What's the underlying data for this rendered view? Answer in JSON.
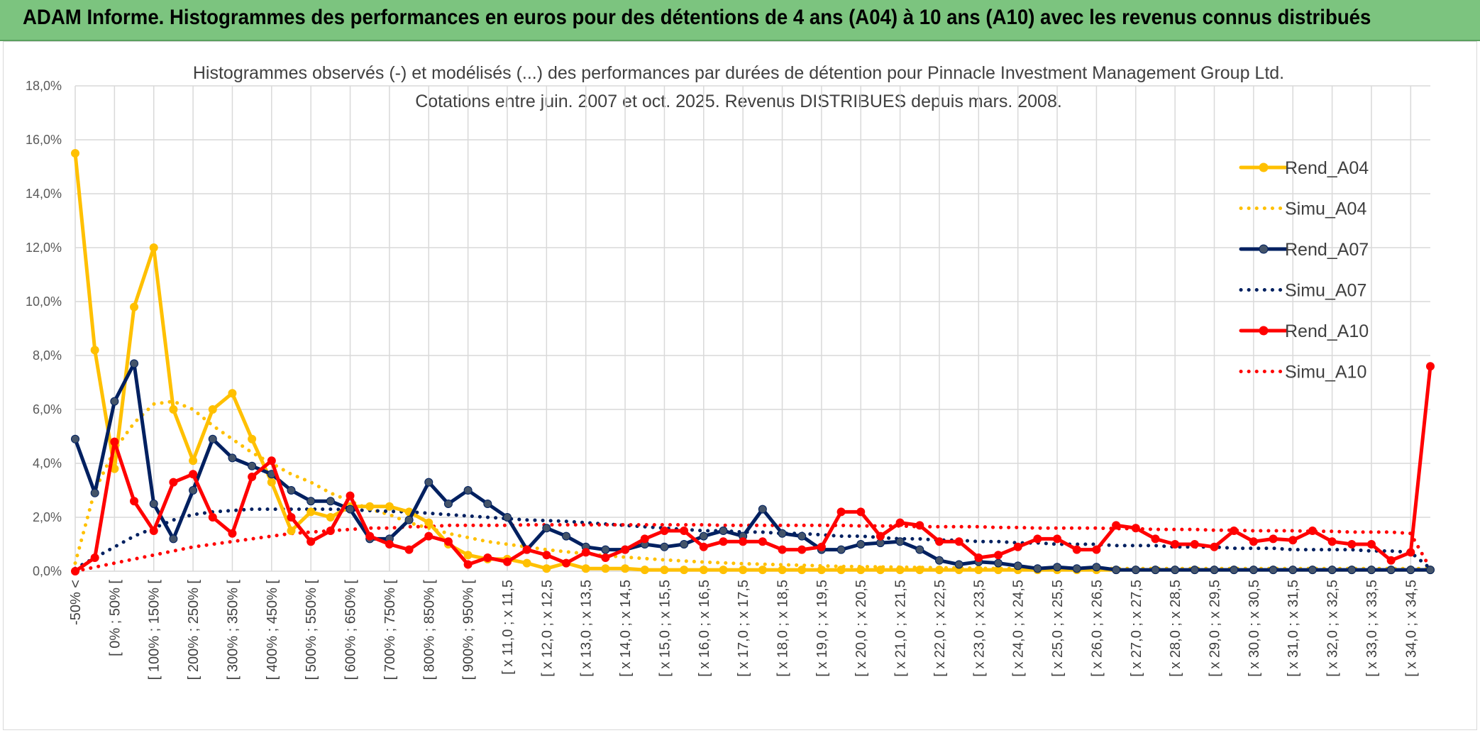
{
  "banner": {
    "title": "ADAM Informe. Histogrammes des performances en euros pour des détentions de 4 ans (A04) à 10 ans (A10) avec les revenus connus distribués"
  },
  "chart_data": {
    "type": "line",
    "subtitle_line1": "Histogrammes observés (-) et modélisés (...) des performances par durées de détention pour Pinnacle Investment Management Group Ltd.",
    "subtitle_line2": "Cotations entre juin. 2007 et oct. 2025. Revenus DISTRIBUES depuis mars. 2008.",
    "ylim": [
      0,
      18
    ],
    "y_ticks": [
      "0,0%",
      "2,0%",
      "4,0%",
      "6,0%",
      "8,0%",
      "10,0%",
      "12,0%",
      "14,0%",
      "16,0%",
      "18,0%"
    ],
    "grid": true,
    "legend_position": "right",
    "categories": [
      "-50% <",
      "",
      "[ 0% ; 50% [",
      "",
      "[ 100% ; 150% [",
      "",
      "[ 200% ; 250% [",
      "",
      "[ 300% ; 350% [",
      "",
      "[ 400% ; 450% [",
      "",
      "[ 500% ; 550% [",
      "",
      "[ 600% ; 650% [",
      "",
      "[ 700% ; 750% [",
      "",
      "[ 800% ; 850% [",
      "",
      "[ 900% ; 950% [",
      "",
      "[ x 11,0 ; x 11,5",
      "",
      "[ x 12,0 ; x 12,5",
      "",
      "[ x 13,0 ; x 13,5",
      "",
      "[ x 14,0 ; x 14,5",
      "",
      "[ x 15,0 ; x 15,5",
      "",
      "[ x 16,0 ; x 16,5",
      "",
      "[ x 17,0 ; x 17,5",
      "",
      "[ x 18,0 ; x 18,5",
      "",
      "[ x 19,0 ; x 19,5",
      "",
      "[ x 20,0 ; x 20,5",
      "",
      "[ x 21,0 ; x 21,5",
      "",
      "[ x 22,0 ; x 22,5",
      "",
      "[ x 23,0 ; x 23,5",
      "",
      "[ x 24,0 ; x 24,5",
      "",
      "[ x 25,0 ; x 25,5",
      "",
      "[ x 26,0 ; x 26,5",
      "",
      "[ x 27,0 ; x 27,5",
      "",
      "[ x 28,0 ; x 28,5",
      "",
      "[ x 29,0 ; x 29,5",
      "",
      "[ x 30,0 ; x 30,5",
      "",
      "[ x 31,0 ; x 31,5",
      "",
      "[ x 32,0 ; x 32,5",
      "",
      "[ x 33,0 ; x 33,5",
      "",
      "[ x 34,0 ; x 34,5",
      ""
    ],
    "series": [
      {
        "name": "Rend_A04",
        "color": "#ffc000",
        "style": "solid",
        "markers": true,
        "values": [
          15.5,
          8.2,
          3.8,
          9.8,
          12.0,
          6.0,
          4.1,
          6.0,
          6.6,
          4.9,
          3.3,
          1.5,
          2.2,
          2.0,
          2.4,
          2.4,
          2.4,
          2.2,
          1.8,
          1.0,
          0.6,
          0.45,
          0.45,
          0.3,
          0.1,
          0.3,
          0.1,
          0.1,
          0.1,
          0.05,
          0.05,
          0.05,
          0.05,
          0.05,
          0.05,
          0.05,
          0.05,
          0.05,
          0.05,
          0.05,
          0.05,
          0.05,
          0.05,
          0.05,
          0.05,
          0.05,
          0.05,
          0.05,
          0.05,
          0.05,
          0.05,
          0.05,
          0.05,
          0.05,
          0.05,
          0.05,
          0.05,
          0.05,
          0.05,
          0.05,
          0.05,
          0.05,
          0.05,
          0.05,
          0.05,
          0.05,
          0.05,
          0.05,
          0.05,
          0.05
        ]
      },
      {
        "name": "Simu_A04",
        "color": "#ffc000",
        "style": "dotted",
        "markers": false,
        "values": [
          0.3,
          3.0,
          4.5,
          5.5,
          6.2,
          6.3,
          6.0,
          5.4,
          4.9,
          4.4,
          4.0,
          3.6,
          3.3,
          2.9,
          2.6,
          2.3,
          2.1,
          1.8,
          1.6,
          1.4,
          1.25,
          1.1,
          1.0,
          0.9,
          0.8,
          0.72,
          0.65,
          0.58,
          0.52,
          0.47,
          0.42,
          0.38,
          0.34,
          0.31,
          0.28,
          0.26,
          0.24,
          0.22,
          0.2,
          0.18,
          0.17,
          0.16,
          0.15,
          0.14,
          0.13,
          0.12,
          0.11,
          0.1,
          0.1,
          0.1,
          0.1,
          0.1,
          0.1,
          0.1,
          0.1,
          0.1,
          0.1,
          0.1,
          0.1,
          0.1,
          0.1,
          0.1,
          0.1,
          0.1,
          0.1,
          0.1,
          0.1,
          0.1,
          0.1,
          0.1
        ]
      },
      {
        "name": "Rend_A07",
        "color": "#002060",
        "style": "solid",
        "markers": true,
        "values": [
          4.9,
          2.9,
          6.3,
          7.7,
          2.5,
          1.2,
          3.0,
          4.9,
          4.2,
          3.9,
          3.6,
          3.0,
          2.6,
          2.6,
          2.3,
          1.2,
          1.2,
          1.9,
          3.3,
          2.5,
          3.0,
          2.5,
          2.0,
          0.8,
          1.6,
          1.3,
          0.9,
          0.8,
          0.8,
          1.0,
          0.9,
          1.0,
          1.3,
          1.5,
          1.3,
          2.3,
          1.4,
          1.3,
          0.8,
          0.8,
          1.0,
          1.05,
          1.1,
          0.8,
          0.4,
          0.25,
          0.35,
          0.3,
          0.2,
          0.1,
          0.15,
          0.1,
          0.15,
          0.05,
          0.05,
          0.05,
          0.05,
          0.05,
          0.05,
          0.05,
          0.05,
          0.05,
          0.05,
          0.05,
          0.05,
          0.05,
          0.05,
          0.05,
          0.05,
          0.05
        ]
      },
      {
        "name": "Simu_A07",
        "color": "#002060",
        "style": "dotted",
        "markers": false,
        "values": [
          0.1,
          0.5,
          0.9,
          1.3,
          1.6,
          1.9,
          2.1,
          2.2,
          2.25,
          2.3,
          2.3,
          2.3,
          2.3,
          2.3,
          2.28,
          2.25,
          2.22,
          2.2,
          2.15,
          2.1,
          2.05,
          2.0,
          1.95,
          1.9,
          1.88,
          1.85,
          1.8,
          1.75,
          1.7,
          1.65,
          1.6,
          1.55,
          1.5,
          1.5,
          1.45,
          1.45,
          1.4,
          1.4,
          1.35,
          1.3,
          1.3,
          1.25,
          1.2,
          1.2,
          1.15,
          1.15,
          1.1,
          1.1,
          1.05,
          1.05,
          1.0,
          1.0,
          1.0,
          0.95,
          0.95,
          0.95,
          0.9,
          0.9,
          0.9,
          0.85,
          0.85,
          0.85,
          0.8,
          0.8,
          0.8,
          0.8,
          0.75,
          0.75,
          0.7,
          0.1
        ]
      },
      {
        "name": "Rend_A10",
        "color": "#ff0000",
        "style": "solid",
        "markers": true,
        "values": [
          0.0,
          0.5,
          4.8,
          2.6,
          1.5,
          3.3,
          3.6,
          2.0,
          1.4,
          3.5,
          4.1,
          2.0,
          1.1,
          1.5,
          2.8,
          1.3,
          1.0,
          0.8,
          1.3,
          1.1,
          0.25,
          0.5,
          0.35,
          0.8,
          0.6,
          0.3,
          0.7,
          0.5,
          0.8,
          1.2,
          1.5,
          1.5,
          0.9,
          1.1,
          1.1,
          1.1,
          0.8,
          0.8,
          0.9,
          2.2,
          2.2,
          1.3,
          1.8,
          1.7,
          1.1,
          1.1,
          0.5,
          0.6,
          0.9,
          1.2,
          1.2,
          0.8,
          0.8,
          1.7,
          1.6,
          1.2,
          1.0,
          1.0,
          0.9,
          1.5,
          1.1,
          1.2,
          1.15,
          1.5,
          1.1,
          1.0,
          1.0,
          0.4,
          0.7,
          7.6
        ]
      },
      {
        "name": "Simu_A10",
        "color": "#ff0000",
        "style": "dotted",
        "markers": false,
        "values": [
          0.0,
          0.15,
          0.3,
          0.45,
          0.6,
          0.75,
          0.9,
          1.0,
          1.1,
          1.2,
          1.3,
          1.4,
          1.45,
          1.5,
          1.55,
          1.6,
          1.6,
          1.65,
          1.65,
          1.7,
          1.7,
          1.7,
          1.7,
          1.72,
          1.72,
          1.72,
          1.72,
          1.72,
          1.72,
          1.72,
          1.72,
          1.72,
          1.72,
          1.7,
          1.7,
          1.7,
          1.7,
          1.7,
          1.7,
          1.7,
          1.68,
          1.68,
          1.68,
          1.65,
          1.65,
          1.65,
          1.65,
          1.62,
          1.62,
          1.6,
          1.6,
          1.6,
          1.6,
          1.58,
          1.58,
          1.55,
          1.55,
          1.55,
          1.52,
          1.52,
          1.5,
          1.5,
          1.5,
          1.48,
          1.48,
          1.45,
          1.45,
          1.45,
          1.4,
          0.1
        ]
      }
    ]
  }
}
